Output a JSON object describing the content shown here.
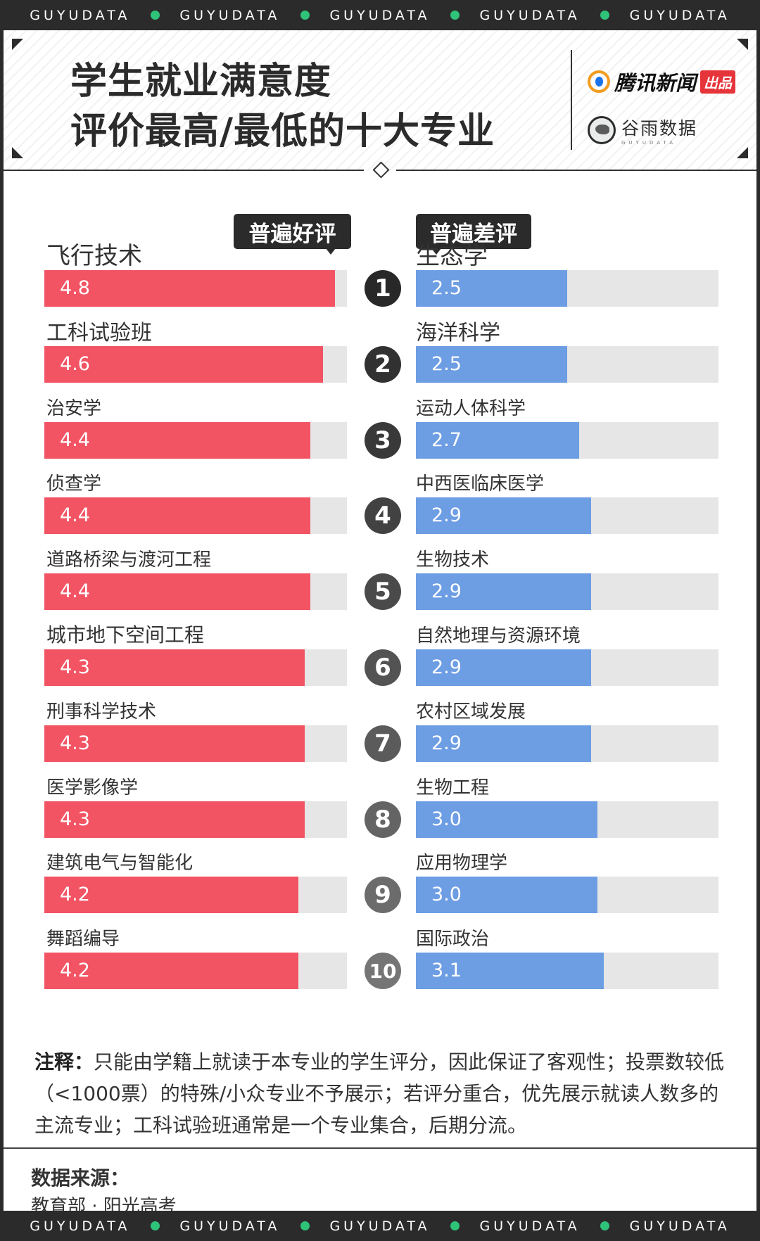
{
  "band_text": "GUYUDATA",
  "title_line1": "学生就业满意度",
  "title_line2": "评价最高/最低的十大专业",
  "logo_tencent": "腾讯新闻",
  "logo_tencent_badge": "出品",
  "logo_guyu": "谷雨数据",
  "logo_guyu_sub": "GUYUDATA",
  "colors": {
    "good": "#f25464",
    "bad": "#6d9de3",
    "track": "#e6e6e6",
    "dark": "#2b2b2b",
    "accent_dot": "#2fc37a"
  },
  "tags": {
    "good": "普遍好评",
    "bad": "普遍差评"
  },
  "ranks": [
    "1",
    "2",
    "3",
    "4",
    "5",
    "6",
    "7",
    "8",
    "9",
    "10"
  ],
  "chart_data": [
    {
      "type": "bar",
      "series": [
        {
          "name": "普遍好评",
          "values": [
            4.8,
            4.6,
            4.4,
            4.4,
            4.4,
            4.3,
            4.3,
            4.3,
            4.2,
            4.2
          ]
        }
      ],
      "categories": [
        "飞行技术",
        "工科试验班",
        "治安学",
        "侦查学",
        "道路桥梁与渡河工程",
        "城市地下空间工程",
        "刑事科学技术",
        "医学影像学",
        "建筑电气与智能化",
        "舞蹈编导"
      ],
      "value_labels": [
        "4.8",
        "4.6",
        "4.4",
        "4.4",
        "4.4",
        "4.3",
        "4.3",
        "4.3",
        "4.2",
        "4.2"
      ],
      "xlim": [
        0,
        5
      ]
    },
    {
      "type": "bar",
      "series": [
        {
          "name": "普遍差评",
          "values": [
            2.5,
            2.5,
            2.7,
            2.9,
            2.9,
            2.9,
            2.9,
            3.0,
            3.0,
            3.1
          ]
        }
      ],
      "categories": [
        "生态学",
        "海洋科学",
        "运动人体科学",
        "中西医临床医学",
        "生物技术",
        "自然地理与资源环境",
        "农村区域发展",
        "生物工程",
        "应用物理学",
        "国际政治"
      ],
      "value_labels": [
        "2.5",
        "2.5",
        "2.7",
        "2.9",
        "2.9",
        "2.9",
        "2.9",
        "3.0",
        "3.0",
        "3.1"
      ],
      "xlim": [
        0,
        5
      ]
    }
  ],
  "note_label": "注释：",
  "note_text": "只能由学籍上就读于本专业的学生评分，因此保证了客观性；投票数较低（<1000票）的特殊/小众专业不予展示；若评分重合，优先展示就读人数多的主流专业；工科试验班通常是一个专业集合，后期分流。",
  "source_label": "数据来源：",
  "source_text": "教育部 · 阳光高考"
}
